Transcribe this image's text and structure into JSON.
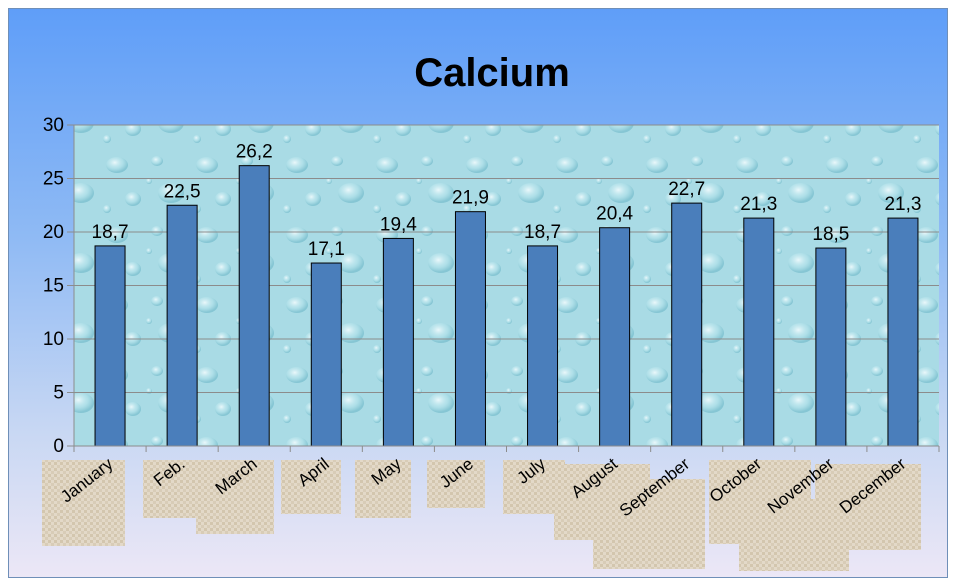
{
  "chart_data": {
    "type": "bar",
    "title": "Calcium",
    "categories": [
      "January",
      "Feb.",
      "March",
      "April",
      "May",
      "June",
      "July",
      "August",
      "September",
      "October",
      "November",
      "December"
    ],
    "values": [
      18.7,
      22.5,
      26.2,
      17.1,
      19.4,
      21.9,
      18.7,
      20.4,
      22.7,
      21.3,
      18.5,
      21.3
    ],
    "value_labels": [
      "18,7",
      "22,5",
      "26,2",
      "17,1",
      "19,4",
      "21,9",
      "18,7",
      "20,4",
      "22,7",
      "21,3",
      "18,5",
      "21,3"
    ],
    "yticks": [
      0,
      5,
      10,
      15,
      20,
      25,
      30
    ],
    "ylim": [
      0,
      30
    ],
    "grid": true,
    "legend": "none",
    "xlabel": "",
    "ylabel": "",
    "colors": {
      "bar": "#4a7ebb",
      "bar_outline": "#000000",
      "gridline": "#8c8c8c",
      "plot_area": "#a7dde6",
      "label_texture": "#e0d6c4"
    }
  }
}
